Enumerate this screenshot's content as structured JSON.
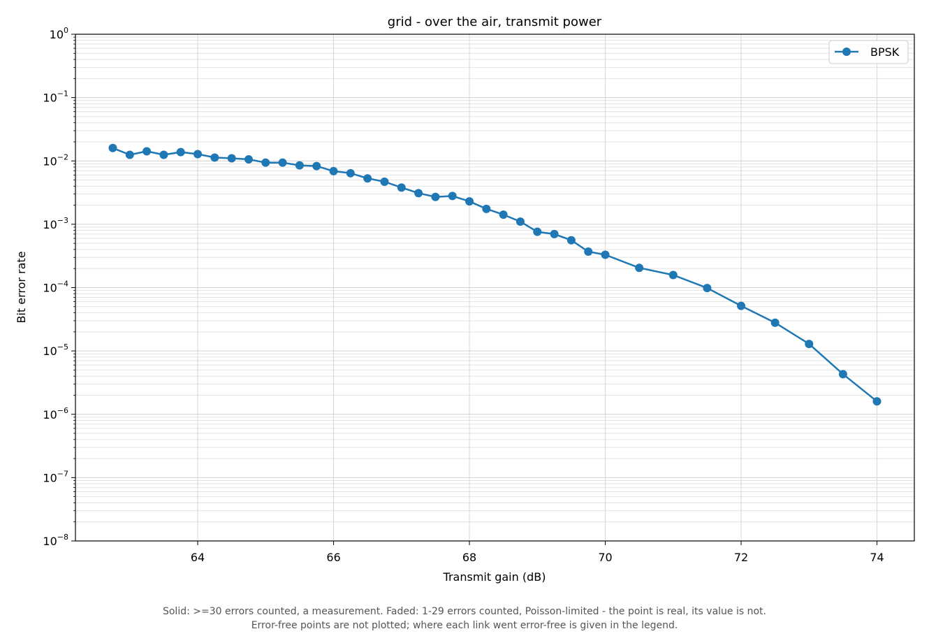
{
  "chart_data": {
    "type": "line",
    "title": "grid - over the air, transmit power",
    "xlabel": "Transmit gain (dB)",
    "ylabel": "Bit error rate",
    "xlim": [
      62.2,
      74.55
    ],
    "ylim": [
      1e-08,
      1
    ],
    "yscale": "log",
    "xticks": [
      64,
      66,
      68,
      70,
      72,
      74
    ],
    "yticks": [
      {
        "exp": -8,
        "label": "10",
        "sup": "−8"
      },
      {
        "exp": -7,
        "label": "10",
        "sup": "−7"
      },
      {
        "exp": -6,
        "label": "10",
        "sup": "−6"
      },
      {
        "exp": -5,
        "label": "10",
        "sup": "−5"
      },
      {
        "exp": -4,
        "label": "10",
        "sup": "−4"
      },
      {
        "exp": -3,
        "label": "10",
        "sup": "−3"
      },
      {
        "exp": -2,
        "label": "10",
        "sup": "−2"
      },
      {
        "exp": -1,
        "label": "10",
        "sup": "−1"
      },
      {
        "exp": 0,
        "label": "10",
        "sup": "0"
      }
    ],
    "grid": true,
    "legend": "top-right",
    "series": [
      {
        "name": "BPSK",
        "color": "#1f77b4",
        "x": [
          62.75,
          63.0,
          63.25,
          63.5,
          63.75,
          64.0,
          64.25,
          64.5,
          64.75,
          65.0,
          65.25,
          65.5,
          65.75,
          66.0,
          66.25,
          66.5,
          66.75,
          67.0,
          67.25,
          67.5,
          67.75,
          68.0,
          68.25,
          68.5,
          68.75,
          69.0,
          69.25,
          69.5,
          69.75,
          70.0,
          70.5,
          71.0,
          71.5,
          72.0,
          72.5,
          73.0,
          73.5,
          74.0
        ],
        "y": [
          0.016,
          0.0125,
          0.0142,
          0.0125,
          0.0138,
          0.0128,
          0.0113,
          0.011,
          0.0106,
          0.0094,
          0.0094,
          0.0085,
          0.0083,
          0.0069,
          0.0064,
          0.0053,
          0.0047,
          0.0038,
          0.0031,
          0.0027,
          0.0028,
          0.0023,
          0.00175,
          0.00142,
          0.0011,
          0.00076,
          0.0007,
          0.00056,
          0.00037,
          0.00033,
          0.000205,
          0.000158,
          9.85e-05,
          5.15e-05,
          2.79e-05,
          1.29e-05,
          4.3e-06,
          1.6e-06
        ]
      }
    ]
  },
  "caption": {
    "line1": "Solid: >=30 errors counted, a measurement.   Faded: 1-29 errors counted, Poisson-limited - the point is real, its value is not.",
    "line2": "Error-free points are not plotted; where each link went error-free is given in the legend."
  }
}
